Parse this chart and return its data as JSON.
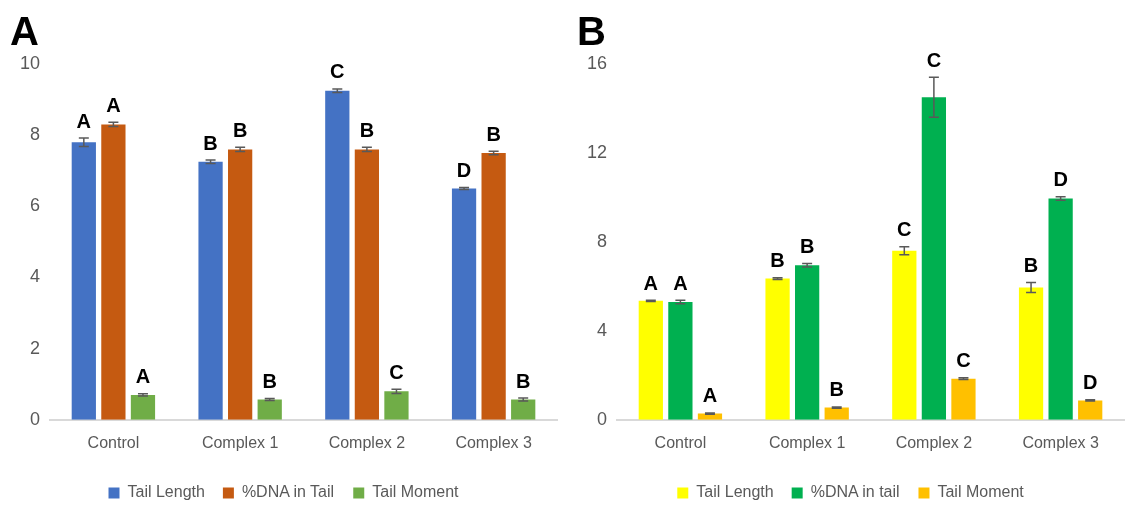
{
  "chart_data": [
    {
      "type": "bar",
      "title": "A",
      "categories": [
        "Control",
        "Complex 1",
        "Complex 2",
        "Complex 3"
      ],
      "series": [
        {
          "name": "Tail Length",
          "color": "#4472c4",
          "values": [
            7.8,
            7.25,
            9.25,
            6.5
          ],
          "errors": [
            0.12,
            0.05,
            0.05,
            0.03
          ],
          "value_labels": [
            "A",
            "B",
            "C",
            "D"
          ]
        },
        {
          "name": "%DNA in Tail",
          "color": "#c55a11",
          "values": [
            8.3,
            7.6,
            7.6,
            7.5
          ],
          "errors": [
            0.06,
            0.06,
            0.06,
            0.05
          ],
          "value_labels": [
            "A",
            "B",
            "B",
            "B"
          ]
        },
        {
          "name": "Tail Moment",
          "color": "#70ad47",
          "values": [
            0.7,
            0.57,
            0.8,
            0.57
          ],
          "errors": [
            0.03,
            0.03,
            0.06,
            0.04
          ],
          "value_labels": [
            "A",
            "B",
            "C",
            "B"
          ]
        }
      ],
      "ylim": [
        0,
        10
      ],
      "yticks": [
        0,
        2,
        4,
        6,
        8,
        10
      ],
      "grid": false,
      "legend": "bottom"
    },
    {
      "type": "bar",
      "title": "B",
      "categories": [
        "Control",
        "Complex 1",
        "Complex 2",
        "Complex 3"
      ],
      "series": [
        {
          "name": "Tail Length",
          "color": "#ffff00",
          "values": [
            5.35,
            6.35,
            7.6,
            5.95
          ],
          "errors": [
            0.03,
            0.04,
            0.18,
            0.22
          ],
          "value_labels": [
            "A",
            "B",
            "C",
            "B"
          ]
        },
        {
          "name": "%DNA in tail",
          "color": "#00b050",
          "values": [
            5.3,
            6.95,
            14.5,
            9.95
          ],
          "errors": [
            0.08,
            0.08,
            0.9,
            0.08
          ],
          "value_labels": [
            "A",
            "B",
            "C",
            "D"
          ]
        },
        {
          "name": "Tail Moment",
          "color": "#ffc000",
          "values": [
            0.28,
            0.55,
            1.85,
            0.87
          ],
          "errors": [
            0.03,
            0.03,
            0.04,
            0.03
          ],
          "value_labels": [
            "A",
            "B",
            "C",
            "D"
          ]
        }
      ],
      "ylim": [
        0,
        16
      ],
      "yticks": [
        0,
        4,
        8,
        12,
        16
      ],
      "grid": false,
      "legend": "bottom"
    }
  ]
}
